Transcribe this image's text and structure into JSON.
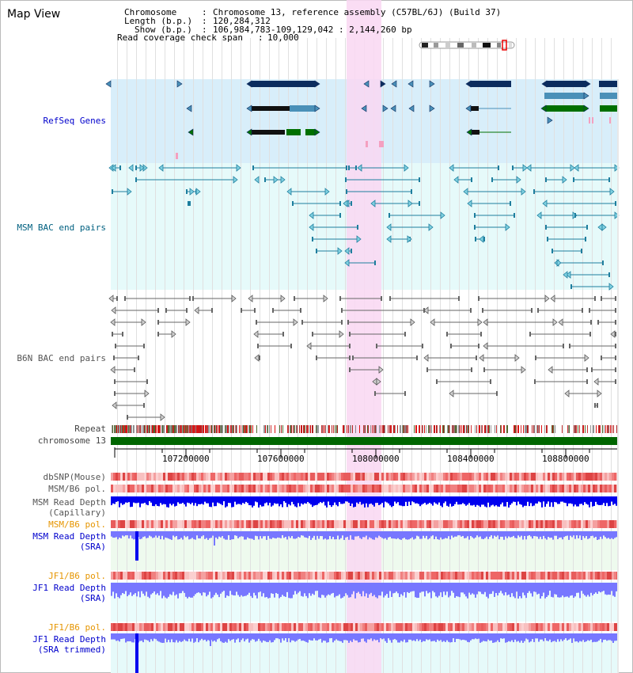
{
  "title": "Map View",
  "header_info": {
    "chromosome_label": "Chromosome",
    "chromosome_value": "Chromosome 13, reference assembly (C57BL/6J) (Build 37)",
    "length_label": "Length (b.p.)",
    "length_value": "120,284,312",
    "show_label": "Show (b.p.)",
    "show_value": "106,984,783-109,129,042 : 2,144,260 bp",
    "coverage_label": "Read coverage check span",
    "coverage_value": "10,000"
  },
  "tracks": {
    "refseq": "RefSeq Genes",
    "msm_bac": "MSM BAC end pairs",
    "b6n_bac": "B6N BAC end pairs",
    "repeat": "Repeat",
    "chromosome": "chromosome 13",
    "dbsnp": "dbSNP(Mouse)",
    "msm_b6_pol_1": "MSM/B6 pol.",
    "msm_read_depth_cap_1": "MSM Read Depth",
    "msm_read_depth_cap_2": "(Capillary)",
    "msm_b6_pol_2": "MSM/B6 pol.",
    "msm_read_depth_sra_1": "MSM Read Depth",
    "msm_read_depth_sra_2": "(SRA)",
    "jf1_b6_pol_1": "JF1/B6 pol.",
    "jf1_read_depth_sra_1": "JF1 Read Depth",
    "jf1_read_depth_sra_2": "(SRA)",
    "jf1_b6_pol_2": "JF1/B6 pol.",
    "jf1_read_depth_trim_1": "JF1 Read Depth",
    "jf1_read_depth_trim_2": "(SRA trimmed)"
  },
  "ruler": {
    "ticks": [
      "107200000",
      "107600000",
      "108000000",
      "108400000",
      "108800000"
    ]
  },
  "colors": {
    "highlight": "#f9d7f2",
    "refseq_bg": "#d8eefa",
    "bac_bg": "#e6fafa",
    "gene_navy": "#0c2c5e",
    "gene_blue": "#4a90b8",
    "gene_green": "#007000",
    "msm_pair": "#1e7e9e",
    "b6n_pair": "#666666",
    "chromosome_bar": "#006600",
    "depth_blue": "#0000ee",
    "depth_light": "#7777ff"
  }
}
